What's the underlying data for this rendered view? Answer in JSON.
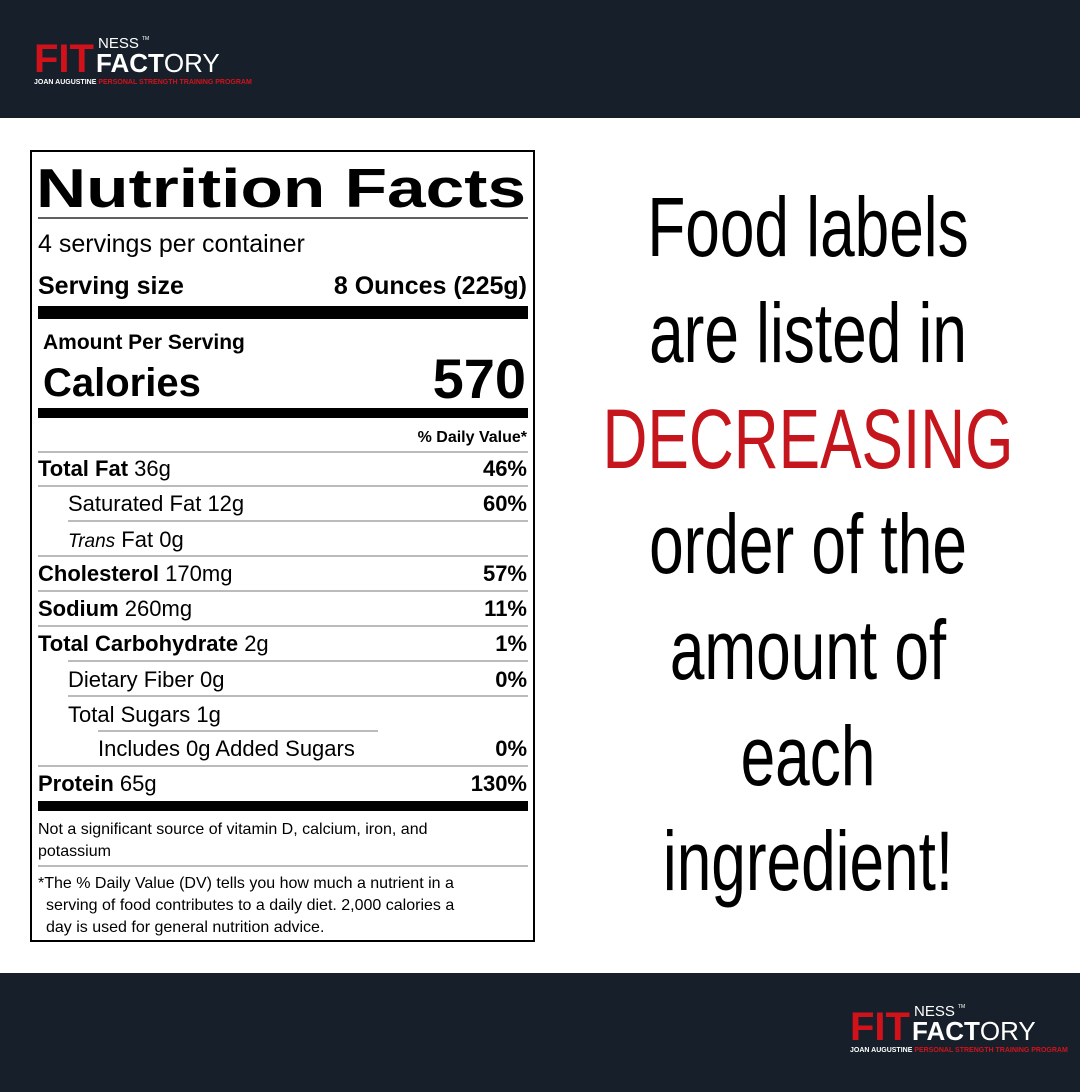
{
  "logo": {
    "fit": "FIT",
    "ness": "NESS",
    "tm": "TM",
    "factory_bold": "FACT",
    "factory_rest": "ORY",
    "first_name": "JOAN",
    "last_name": "AUGUSTINE",
    "program": "PERSONAL STRENGTH TRAINING PROGRAM"
  },
  "label": {
    "title": "Nutrition Facts",
    "servings": "4 servings per container",
    "serving_size_label": "Serving size",
    "serving_size_value": "8 Ounces (225g)",
    "amount_per_serving": "Amount Per Serving",
    "calories_label": "Calories",
    "calories_value": "570",
    "daily_value_header": "% Daily Value*",
    "nutrients": [
      {
        "name": "Total Fat",
        "amount": "36g",
        "daily_value": "46%"
      },
      {
        "name": "Saturated Fat",
        "amount": "12g",
        "daily_value": "60%"
      },
      {
        "name_italic": "Trans",
        "name": "Fat",
        "amount": "0g"
      },
      {
        "name": "Cholesterol",
        "amount": "170mg",
        "daily_value": "57%"
      },
      {
        "name": "Sodium",
        "amount": "260mg",
        "daily_value": "11%"
      },
      {
        "name": "Total Carbohydrate",
        "amount": "2g",
        "daily_value": "1%"
      },
      {
        "name": "Dietary Fiber",
        "amount": "0g",
        "daily_value": "0%"
      },
      {
        "name": "Total Sugars",
        "amount": "1g"
      },
      {
        "name": "Includes 0g Added Sugars",
        "daily_value": "0%"
      },
      {
        "name": "Protein",
        "amount": "65g",
        "daily_value": "130%"
      }
    ],
    "note_lines": [
      "Not a significant source of vitamin D, calcium, iron, and",
      "potassium"
    ],
    "footnote_lines": [
      "*The % Daily Value (DV) tells you how much a nutrient in a",
      "serving of food contributes to a daily diet. 2,000 calories a",
      "day is used for general nutrition advice."
    ]
  },
  "message": {
    "lines": [
      "Food labels",
      "are listed in",
      "DECREASING",
      "order of the",
      "amount of",
      "each",
      "ingredient!"
    ]
  }
}
